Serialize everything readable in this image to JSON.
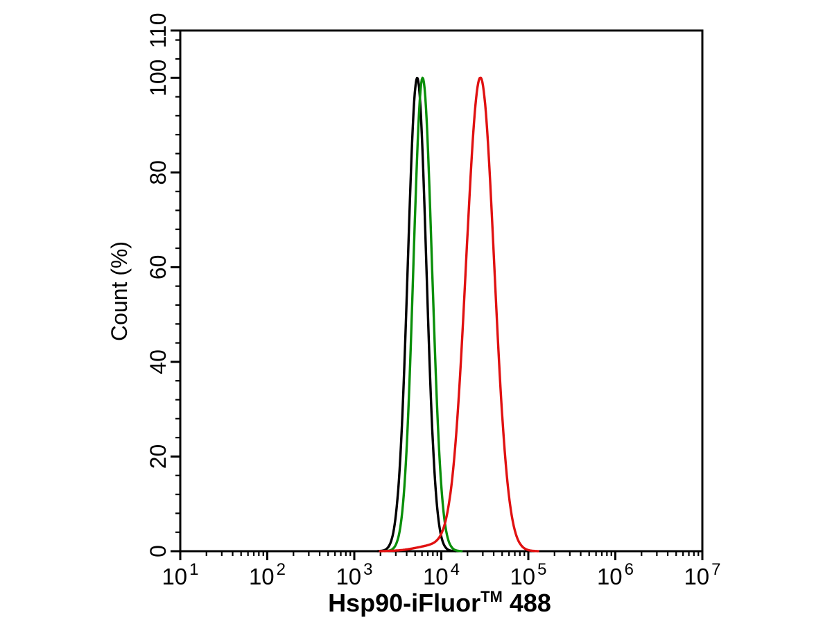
{
  "figure": {
    "background_color": "#ffffff",
    "frame_color": "#000000"
  },
  "chart_data": {
    "type": "line",
    "subtype": "flow-cytometry-overlay-histogram",
    "title": "",
    "xlabel": "Hsp90-iFluor™ 488",
    "xlabel_parts": {
      "base": "Hsp90-iFluor",
      "superscript": "TM",
      "suffix": " 488"
    },
    "ylabel": "Count (%)",
    "x_axis": {
      "scale": "log10",
      "min": 10,
      "max": 10000000,
      "major_tick_exponents": [
        1,
        2,
        3,
        4,
        5,
        6,
        7
      ],
      "major_tick_labels": [
        "10¹",
        "10²",
        "10³",
        "10⁴",
        "10⁵",
        "10⁶",
        "10⁷"
      ],
      "minor_tick_multiples": [
        2,
        3,
        4,
        5,
        6,
        7,
        8,
        9
      ],
      "grid": false
    },
    "y_axis": {
      "min": 0,
      "max": 110,
      "major_ticks": [
        0,
        20,
        40,
        60,
        80,
        100,
        110
      ],
      "minor_tick_step": 4,
      "grid": false
    },
    "legend": {
      "visible": false
    },
    "series": [
      {
        "name": "black",
        "color": "#000000",
        "line_width": 3.4,
        "peak": {
          "x": 5300,
          "y": 100
        },
        "mu_log10": 3.723,
        "sigma_left_log10": 0.108,
        "sigma_right_log10": 0.105,
        "peak_y": 100
      },
      {
        "name": "green",
        "color": "#0a8f0a",
        "line_width": 3.4,
        "peak": {
          "x": 6100,
          "y": 100
        },
        "mu_log10": 3.785,
        "sigma_left_log10": 0.105,
        "sigma_right_log10": 0.108,
        "peak_y": 100
      },
      {
        "name": "red",
        "color": "#e01111",
        "line_width": 3.4,
        "peak": {
          "x": 28200,
          "y": 100
        },
        "mu_log10": 4.45,
        "sigma_left_log10": 0.165,
        "sigma_right_log10": 0.158,
        "peak_y": 100,
        "tail": {
          "mu_log10": 3.95,
          "sigma_log10": 0.22,
          "peak_y": 1.3
        }
      }
    ]
  }
}
